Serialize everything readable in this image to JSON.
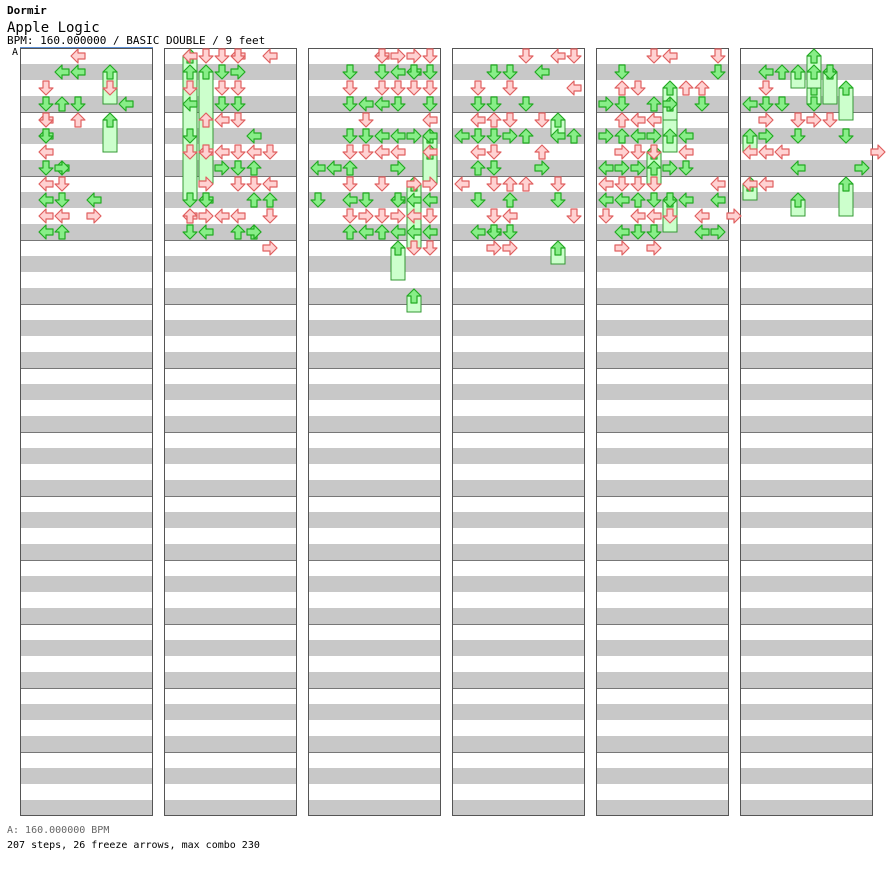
{
  "artist": "Dormir",
  "song_title": "Apple Logic",
  "chart_info": "BPM: 160.000000 / BASIC DOUBLE / 9 feet",
  "bpm_marker": "A",
  "bpm_legend": "A: 160.000000 BPM",
  "summary": "207 steps, 26 freeze arrows, max combo 230",
  "colors": {
    "stripe": "#c8c8c8",
    "border": "#555555",
    "tap_fill": "#ffd2d2",
    "tap_stroke": "#e06060",
    "eighth_fill": "#88ee88",
    "eighth_stroke": "#22aa22",
    "freeze_fill": "#ccffcc",
    "freeze_stroke": "#339933"
  },
  "chart_data": {
    "type": "step-chart",
    "columns": 6,
    "measures_per_column": 12,
    "lanes": [
      "P1-left",
      "P1-down",
      "P1-up",
      "P1-right",
      "P1-center",
      "P2-left",
      "P2-down",
      "P2-up",
      "P2-right"
    ],
    "taps": [
      [
        0,
        1,
        2,
        1
      ],
      [
        0,
        1,
        3,
        1
      ],
      [
        0,
        1,
        4,
        0
      ],
      [
        0,
        1,
        4,
        1
      ],
      [
        0,
        1,
        5,
        0
      ],
      [
        0,
        1,
        5,
        1
      ],
      [
        0,
        1,
        6,
        0
      ],
      [
        0,
        1,
        7,
        1
      ],
      [
        0,
        1,
        8,
        0
      ],
      [
        0,
        1,
        9,
        0
      ],
      [
        0,
        1,
        10,
        0
      ],
      [
        0,
        1,
        11,
        0
      ],
      [
        0,
        2,
        1,
        0
      ],
      [
        0,
        2,
        3,
        2
      ],
      [
        0,
        2,
        7,
        0
      ],
      [
        0,
        2,
        7,
        3
      ],
      [
        0,
        2,
        8,
        1
      ],
      [
        0,
        2,
        9,
        1
      ],
      [
        0,
        2,
        10,
        0
      ],
      [
        0,
        2,
        11,
        2
      ],
      [
        0,
        3,
        0,
        0
      ],
      [
        0,
        3,
        1,
        0
      ],
      [
        0,
        3,
        3,
        1
      ],
      [
        0,
        3,
        4,
        2
      ],
      [
        0,
        4,
        9,
        0
      ],
      [
        0,
        4,
        10,
        3
      ],
      [
        0,
        5,
        2,
        1
      ],
      [
        0,
        6,
        3,
        0
      ],
      [
        1,
        1,
        0,
        0
      ],
      [
        1,
        1,
        1,
        2
      ],
      [
        1,
        1,
        2,
        1
      ],
      [
        1,
        1,
        3,
        0
      ],
      [
        1,
        1,
        5,
        1
      ],
      [
        1,
        1,
        6,
        1
      ],
      [
        1,
        1,
        9,
        1
      ],
      [
        1,
        1,
        10,
        0
      ],
      [
        1,
        1,
        10,
        2
      ],
      [
        1,
        1,
        11,
        1
      ],
      [
        1,
        2,
        0,
        1
      ],
      [
        1,
        2,
        4,
        2
      ],
      [
        1,
        2,
        6,
        0
      ],
      [
        1,
        2,
        6,
        1
      ],
      [
        1,
        2,
        8,
        3
      ],
      [
        1,
        2,
        9,
        0
      ],
      [
        1,
        2,
        9,
        1
      ],
      [
        1,
        2,
        10,
        3
      ],
      [
        1,
        2,
        11,
        0
      ],
      [
        1,
        3,
        0,
        1
      ],
      [
        1,
        3,
        1,
        1
      ],
      [
        1,
        3,
        2,
        1
      ],
      [
        1,
        3,
        3,
        1
      ],
      [
        1,
        3,
        4,
        0
      ],
      [
        1,
        3,
        6,
        0
      ],
      [
        1,
        3,
        7,
        3
      ],
      [
        1,
        3,
        10,
        0
      ],
      [
        1,
        4,
        0,
        0
      ],
      [
        1,
        4,
        0,
        1
      ],
      [
        1,
        4,
        1,
        3
      ],
      [
        1,
        4,
        2,
        1
      ],
      [
        1,
        4,
        3,
        1
      ],
      [
        1,
        4,
        4,
        1
      ],
      [
        1,
        4,
        6,
        1
      ],
      [
        1,
        4,
        7,
        1
      ],
      [
        1,
        4,
        8,
        1
      ],
      [
        1,
        4,
        10,
        0
      ],
      [
        1,
        4,
        11,
        2
      ],
      [
        1,
        5,
        5,
        0
      ],
      [
        1,
        5,
        6,
        0
      ],
      [
        1,
        5,
        7,
        2
      ],
      [
        1,
        5,
        8,
        1
      ],
      [
        1,
        5,
        9,
        2
      ],
      [
        1,
        5,
        11,
        2
      ],
      [
        1,
        5,
        11,
        3
      ],
      [
        1,
        6,
        0,
        0
      ],
      [
        1,
        6,
        6,
        1
      ],
      [
        1,
        6,
        8,
        0
      ],
      [
        1,
        6,
        9,
        2
      ],
      [
        1,
        6,
        10,
        1
      ],
      [
        1,
        6,
        12,
        3
      ],
      [
        2,
        0,
        7,
        0
      ],
      [
        2,
        0,
        9,
        1
      ],
      [
        2,
        1,
        7,
        0
      ],
      [
        2,
        2,
        1,
        1
      ],
      [
        2,
        2,
        2,
        1
      ],
      [
        2,
        2,
        3,
        1
      ],
      [
        2,
        2,
        5,
        1
      ],
      [
        2,
        2,
        6,
        1
      ],
      [
        2,
        2,
        7,
        2
      ],
      [
        2,
        2,
        8,
        1
      ],
      [
        2,
        2,
        9,
        0
      ],
      [
        2,
        2,
        10,
        1
      ],
      [
        2,
        2,
        11,
        2
      ],
      [
        2,
        3,
        3,
        0
      ],
      [
        2,
        3,
        4,
        1
      ],
      [
        2,
        3,
        5,
        1
      ],
      [
        2,
        3,
        6,
        1
      ],
      [
        2,
        3,
        9,
        1
      ],
      [
        2,
        3,
        10,
        3
      ],
      [
        2,
        3,
        11,
        0
      ],
      [
        2,
        4,
        0,
        0
      ],
      [
        2,
        4,
        0,
        1
      ],
      [
        2,
        4,
        1,
        1
      ],
      [
        2,
        4,
        2,
        1
      ],
      [
        2,
        4,
        3,
        0
      ],
      [
        2,
        4,
        5,
        0
      ],
      [
        2,
        4,
        6,
        0
      ],
      [
        2,
        4,
        8,
        1
      ],
      [
        2,
        4,
        10,
        1
      ],
      [
        2,
        4,
        11,
        2
      ],
      [
        2,
        5,
        0,
        3
      ],
      [
        2,
        5,
        1,
        0
      ],
      [
        2,
        5,
        2,
        1
      ],
      [
        2,
        5,
        3,
        1
      ],
      [
        2,
        5,
        5,
        0
      ],
      [
        2,
        5,
        6,
        0
      ],
      [
        2,
        5,
        7,
        3
      ],
      [
        2,
        5,
        9,
        0
      ],
      [
        2,
        5,
        9,
        1
      ],
      [
        2,
        5,
        10,
        3
      ],
      [
        2,
        5,
        11,
        0
      ],
      [
        2,
        6,
        0,
        3
      ],
      [
        2,
        6,
        1,
        0
      ],
      [
        2,
        6,
        1,
        1
      ],
      [
        2,
        6,
        2,
        1
      ],
      [
        2,
        6,
        5,
        3
      ],
      [
        2,
        6,
        8,
        3
      ],
      [
        2,
        6,
        9,
        0
      ],
      [
        2,
        6,
        10,
        0
      ],
      [
        2,
        6,
        11,
        0
      ],
      [
        2,
        6,
        12,
        1
      ],
      [
        2,
        7,
        0,
        1
      ],
      [
        2,
        7,
        1,
        1
      ],
      [
        2,
        7,
        2,
        1
      ],
      [
        2,
        7,
        3,
        1
      ],
      [
        2,
        7,
        4,
        0
      ],
      [
        2,
        7,
        5,
        0
      ],
      [
        2,
        7,
        6,
        0
      ],
      [
        2,
        7,
        8,
        3
      ],
      [
        2,
        7,
        9,
        0
      ],
      [
        2,
        7,
        10,
        1
      ],
      [
        2,
        7,
        11,
        0
      ],
      [
        2,
        7,
        12,
        1
      ],
      [
        3,
        0,
        5,
        0
      ],
      [
        3,
        0,
        8,
        0
      ],
      [
        3,
        1,
        2,
        1
      ],
      [
        3,
        1,
        3,
        1
      ],
      [
        3,
        1,
        4,
        0
      ],
      [
        3,
        1,
        5,
        1
      ],
      [
        3,
        1,
        6,
        0
      ],
      [
        3,
        1,
        7,
        2
      ],
      [
        3,
        1,
        9,
        1
      ],
      [
        3,
        1,
        11,
        0
      ],
      [
        3,
        2,
        1,
        1
      ],
      [
        3,
        2,
        3,
        1
      ],
      [
        3,
        2,
        4,
        2
      ],
      [
        3,
        2,
        5,
        1
      ],
      [
        3,
        2,
        6,
        1
      ],
      [
        3,
        2,
        7,
        1
      ],
      [
        3,
        2,
        8,
        1
      ],
      [
        3,
        2,
        10,
        1
      ],
      [
        3,
        2,
        11,
        0
      ],
      [
        3,
        2,
        11,
        1
      ],
      [
        3,
        2,
        12,
        3
      ],
      [
        3,
        3,
        1,
        1
      ],
      [
        3,
        3,
        2,
        1
      ],
      [
        3,
        3,
        4,
        1
      ],
      [
        3,
        3,
        5,
        3
      ],
      [
        3,
        3,
        8,
        2
      ],
      [
        3,
        3,
        9,
        2
      ],
      [
        3,
        3,
        10,
        0
      ],
      [
        3,
        3,
        11,
        1
      ],
      [
        3,
        3,
        12,
        3
      ],
      [
        3,
        4,
        0,
        1
      ],
      [
        3,
        4,
        3,
        1
      ],
      [
        3,
        4,
        5,
        2
      ],
      [
        3,
        4,
        8,
        2
      ],
      [
        3,
        5,
        1,
        0
      ],
      [
        3,
        5,
        4,
        1
      ],
      [
        3,
        5,
        6,
        2
      ],
      [
        3,
        5,
        7,
        3
      ],
      [
        3,
        6,
        0,
        0
      ],
      [
        3,
        6,
        5,
        0
      ],
      [
        3,
        6,
        8,
        1
      ],
      [
        3,
        6,
        9,
        1
      ],
      [
        3,
        7,
        0,
        1
      ],
      [
        3,
        7,
        2,
        0
      ],
      [
        3,
        7,
        5,
        2
      ],
      [
        3,
        7,
        10,
        1
      ],
      [
        4,
        0,
        3,
        3
      ],
      [
        4,
        0,
        5,
        3
      ],
      [
        4,
        0,
        7,
        0
      ],
      [
        4,
        0,
        8,
        0
      ],
      [
        4,
        0,
        9,
        0
      ],
      [
        4,
        0,
        10,
        1
      ],
      [
        4,
        1,
        1,
        1
      ],
      [
        4,
        1,
        2,
        2
      ],
      [
        4,
        1,
        3,
        1
      ],
      [
        4,
        1,
        4,
        2
      ],
      [
        4,
        1,
        5,
        2
      ],
      [
        4,
        1,
        6,
        3
      ],
      [
        4,
        1,
        7,
        3
      ],
      [
        4,
        1,
        8,
        1
      ],
      [
        4,
        1,
        9,
        0
      ],
      [
        4,
        1,
        11,
        0
      ],
      [
        4,
        1,
        12,
        3
      ],
      [
        4,
        2,
        2,
        1
      ],
      [
        4,
        2,
        4,
        0
      ],
      [
        4,
        2,
        5,
        0
      ],
      [
        4,
        2,
        6,
        1
      ],
      [
        4,
        2,
        7,
        3
      ],
      [
        4,
        2,
        8,
        1
      ],
      [
        4,
        2,
        9,
        2
      ],
      [
        4,
        2,
        10,
        0
      ],
      [
        4,
        2,
        11,
        1
      ],
      [
        4,
        3,
        0,
        1
      ],
      [
        4,
        3,
        3,
        2
      ],
      [
        4,
        3,
        4,
        0
      ],
      [
        4,
        3,
        5,
        3
      ],
      [
        4,
        3,
        6,
        1
      ],
      [
        4,
        3,
        7,
        2
      ],
      [
        4,
        3,
        8,
        1
      ],
      [
        4,
        3,
        9,
        1
      ],
      [
        4,
        3,
        10,
        0
      ],
      [
        4,
        3,
        11,
        1
      ],
      [
        4,
        3,
        12,
        3
      ],
      [
        4,
        4,
        0,
        0
      ],
      [
        4,
        4,
        3,
        3
      ],
      [
        4,
        4,
        5,
        2
      ],
      [
        4,
        4,
        7,
        3
      ],
      [
        4,
        4,
        9,
        1
      ],
      [
        4,
        4,
        10,
        1
      ],
      [
        4,
        5,
        2,
        2
      ],
      [
        4,
        5,
        5,
        0
      ],
      [
        4,
        5,
        6,
        0
      ],
      [
        4,
        5,
        7,
        1
      ],
      [
        4,
        5,
        9,
        0
      ],
      [
        4,
        6,
        2,
        2
      ],
      [
        4,
        6,
        3,
        1
      ],
      [
        4,
        6,
        10,
        0
      ],
      [
        4,
        6,
        11,
        0
      ],
      [
        4,
        7,
        0,
        1
      ],
      [
        4,
        7,
        1,
        1
      ],
      [
        4,
        7,
        8,
        0
      ],
      [
        4,
        7,
        9,
        0
      ],
      [
        4,
        7,
        11,
        3
      ],
      [
        4,
        8,
        10,
        3
      ],
      [
        5,
        0,
        3,
        0
      ],
      [
        5,
        0,
        6,
        0
      ],
      [
        5,
        0,
        8,
        0
      ],
      [
        5,
        1,
        1,
        0
      ],
      [
        5,
        1,
        2,
        1
      ],
      [
        5,
        1,
        3,
        1
      ],
      [
        5,
        1,
        4,
        3
      ],
      [
        5,
        1,
        5,
        3
      ],
      [
        5,
        1,
        6,
        0
      ],
      [
        5,
        1,
        8,
        0
      ],
      [
        5,
        2,
        1,
        2
      ],
      [
        5,
        2,
        3,
        1
      ],
      [
        5,
        2,
        6,
        0
      ],
      [
        5,
        3,
        4,
        1
      ],
      [
        5,
        3,
        5,
        1
      ],
      [
        5,
        3,
        7,
        0
      ],
      [
        5,
        4,
        3,
        1
      ],
      [
        5,
        4,
        4,
        3
      ],
      [
        5,
        5,
        1,
        1
      ],
      [
        5,
        5,
        4,
        1
      ],
      [
        5,
        6,
        5,
        1
      ],
      [
        5,
        7,
        7,
        3
      ],
      [
        5,
        8,
        6,
        3
      ]
    ],
    "freezes": [
      [
        0,
        5,
        4,
        6
      ],
      [
        0,
        5,
        3,
        1
      ],
      [
        1,
        1,
        9,
        0
      ],
      [
        1,
        2,
        8,
        1
      ],
      [
        2,
        7,
        8,
        5
      ],
      [
        2,
        6,
        11,
        12
      ],
      [
        2,
        6,
        8,
        12
      ],
      [
        2,
        7,
        6,
        8
      ],
      [
        2,
        5,
        12,
        14
      ],
      [
        2,
        6,
        15,
        16
      ],
      [
        3,
        6,
        4,
        5
      ],
      [
        3,
        6,
        12,
        13
      ],
      [
        4,
        4,
        2,
        6
      ],
      [
        4,
        4,
        3,
        4
      ],
      [
        4,
        3,
        6,
        8
      ],
      [
        4,
        4,
        9,
        11
      ],
      [
        5,
        4,
        0,
        2
      ],
      [
        5,
        5,
        1,
        3
      ],
      [
        5,
        6,
        2,
        4
      ],
      [
        5,
        0,
        8,
        9
      ],
      [
        5,
        3,
        1,
        2
      ],
      [
        5,
        3,
        9,
        10
      ],
      [
        5,
        4,
        2,
        3
      ],
      [
        5,
        4,
        1,
        2
      ],
      [
        5,
        0,
        5,
        6
      ],
      [
        5,
        6,
        8,
        10
      ]
    ]
  }
}
